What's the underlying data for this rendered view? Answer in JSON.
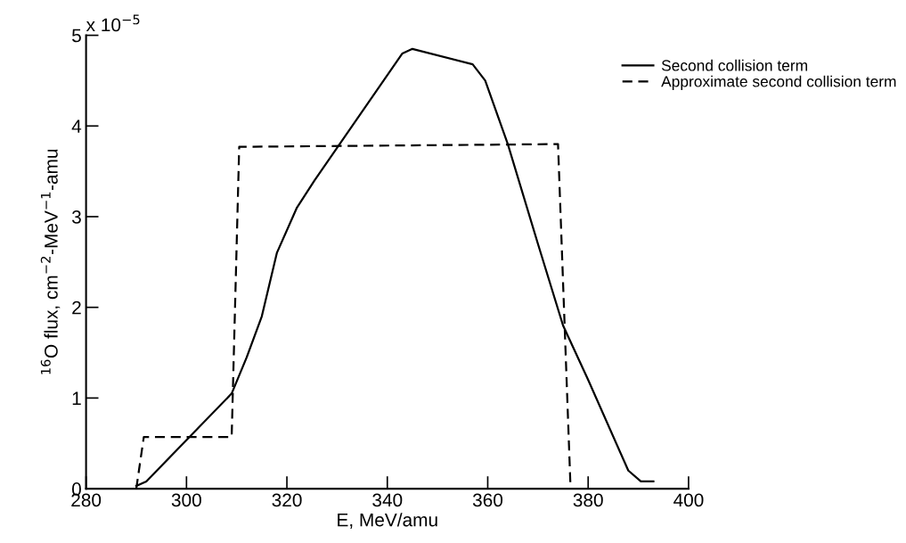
{
  "chart_data": {
    "type": "line",
    "xlabel": "E, MeV/amu",
    "ylabel": "$^{16}$O flux, cm$^{−2}$-MeV$^{−1}$-amu",
    "annotations": [
      "x 10$^{−5}$"
    ],
    "xlim": [
      280,
      400
    ],
    "xticks": [
      280,
      300,
      320,
      340,
      360,
      380,
      400
    ],
    "ylim": [
      0,
      5
    ],
    "yticks": [
      0,
      1,
      2,
      3,
      4,
      5
    ],
    "grid": false,
    "legend": "top right",
    "series": [
      {
        "name": "Second collision term",
        "color": "#000000",
        "line_style": "solid",
        "x": [
          290,
          292,
          309,
          312,
          315,
          318,
          322,
          325.5,
          343,
          345,
          357,
          359.5,
          364,
          370,
          375,
          380,
          388,
          390.5,
          393
        ],
        "values": [
          0.03,
          0.08,
          1.05,
          1.45,
          1.9,
          2.6,
          3.1,
          3.4,
          4.8,
          4.85,
          4.68,
          4.5,
          3.8,
          2.7,
          1.8,
          1.2,
          0.2,
          0.08,
          0.08
        ]
      },
      {
        "name": "Approximate second collision term",
        "color": "#000000",
        "line_style": "dashed",
        "x": [
          290,
          291.5,
          309,
          310.5,
          374,
          376.5
        ],
        "values": [
          0,
          0.57,
          0.57,
          3.77,
          3.8,
          0
        ]
      }
    ]
  }
}
